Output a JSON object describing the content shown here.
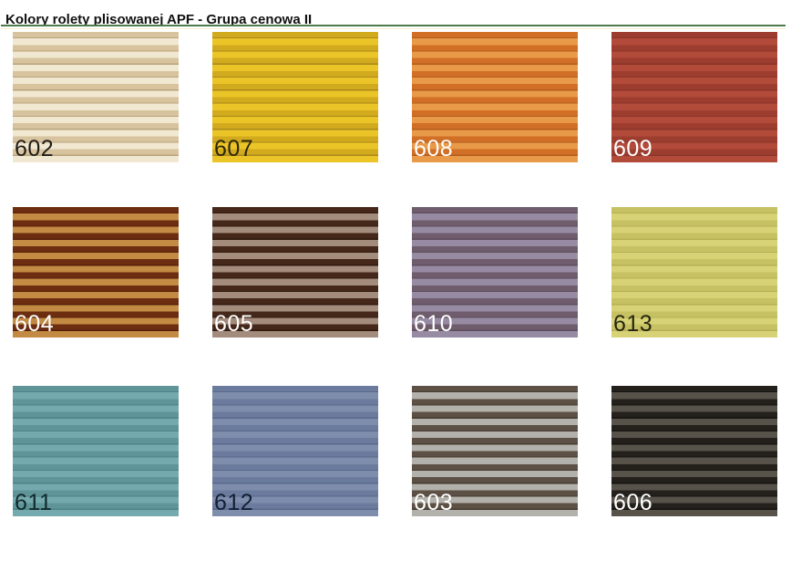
{
  "header": {
    "title": "Kolory rolety plisowanej APF - Grupa cenowa II",
    "rule_color": "#4f7b4f",
    "rule_shadow_color": "#f3efc9"
  },
  "swatches": [
    {
      "code": "602",
      "stripe_light": "#f1e8d1",
      "stripe_dark": "#d7c39e",
      "crease": "#b9a37a",
      "code_color": "#1f1d18"
    },
    {
      "code": "607",
      "stripe_light": "#ebc527",
      "stripe_dark": "#d2aa1e",
      "crease": "#a9871a",
      "code_color": "#2e2708"
    },
    {
      "code": "608",
      "stripe_light": "#e89a49",
      "stripe_dark": "#d06f25",
      "crease": "#b25c1d",
      "code_color": "#ffffff"
    },
    {
      "code": "609",
      "stripe_light": "#b24b3a",
      "stripe_dark": "#9c3d30",
      "crease": "#8a3529",
      "code_color": "#ffffff"
    },
    {
      "code": "604",
      "stripe_light": "#c28a43",
      "stripe_dark": "#6d2d10",
      "crease": "#56200a",
      "code_color": "#ffffff"
    },
    {
      "code": "605",
      "stripe_light": "#a48c7c",
      "stripe_dark": "#45281a",
      "crease": "#301a0f",
      "code_color": "#ffffff"
    },
    {
      "code": "610",
      "stripe_light": "#978ba3",
      "stripe_dark": "#6f5c6c",
      "crease": "#5e4d5c",
      "code_color": "#ffffff"
    },
    {
      "code": "613",
      "stripe_light": "#d7d276",
      "stripe_dark": "#c6c163",
      "crease": "#b5b052",
      "code_color": "#26260f"
    },
    {
      "code": "611",
      "stripe_light": "#74a9ad",
      "stripe_dark": "#5f9599",
      "crease": "#4e8487",
      "code_color": "#102a2c"
    },
    {
      "code": "612",
      "stripe_light": "#7e8dac",
      "stripe_dark": "#6b7b9d",
      "crease": "#58698b",
      "code_color": "#161e36"
    },
    {
      "code": "603",
      "stripe_light": "#b3b1ab",
      "stripe_dark": "#5d5145",
      "crease": "#443a2f",
      "code_color": "#ffffff"
    },
    {
      "code": "606",
      "stripe_light": "#57534b",
      "stripe_dark": "#24211c",
      "crease": "#151310",
      "code_color": "#ffffff"
    }
  ]
}
